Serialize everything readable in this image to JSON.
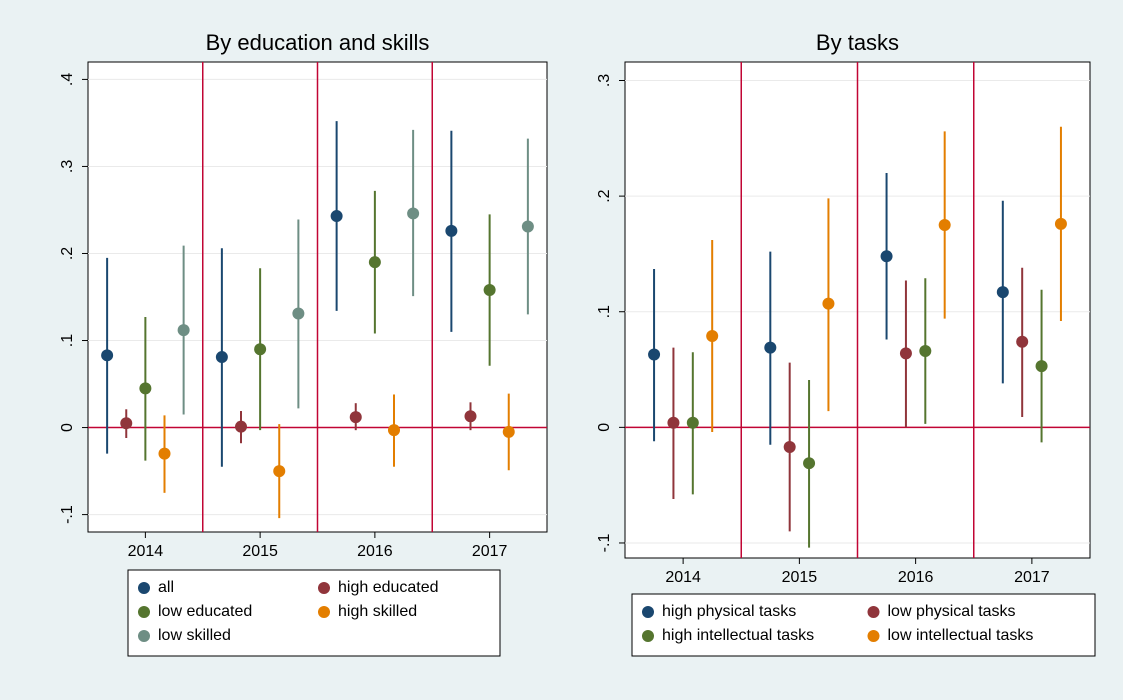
{
  "chart_data": [
    {
      "type": "errorbar",
      "title": "By education and skills",
      "categories": [
        "2014",
        "2015",
        "2016",
        "2017"
      ],
      "ylim": [
        -0.12,
        0.42
      ],
      "yticks": [
        {
          "value": -0.1,
          "label": "-.1"
        },
        0,
        {
          "value": 0.1,
          "label": ".1"
        },
        {
          "value": 0.2,
          "label": ".2"
        },
        {
          "value": 0.3,
          "label": ".3"
        },
        {
          "value": 0.4,
          "label": ".4"
        }
      ],
      "grid": true,
      "yline": 0,
      "legend_columns": 2,
      "series": [
        {
          "name": "all",
          "color": "#1a476f",
          "values": [
            0.083,
            0.081,
            0.243,
            0.226
          ],
          "lower": [
            -0.03,
            -0.045,
            0.134,
            0.11
          ],
          "upper": [
            0.195,
            0.206,
            0.352,
            0.341
          ]
        },
        {
          "name": "high educated",
          "color": "#90353b",
          "values": [
            0.005,
            0.001,
            0.012,
            0.013
          ],
          "lower": [
            -0.012,
            -0.018,
            -0.003,
            -0.003
          ],
          "upper": [
            0.021,
            0.019,
            0.028,
            0.029
          ]
        },
        {
          "name": "low educated",
          "color": "#55752f",
          "values": [
            0.045,
            0.09,
            0.19,
            0.158
          ],
          "lower": [
            -0.038,
            -0.003,
            0.108,
            0.071
          ],
          "upper": [
            0.127,
            0.183,
            0.272,
            0.245
          ]
        },
        {
          "name": "high skilled",
          "color": "#e37e00",
          "values": [
            -0.03,
            -0.05,
            -0.003,
            -0.005
          ],
          "lower": [
            -0.075,
            -0.104,
            -0.045,
            -0.049
          ],
          "upper": [
            0.014,
            0.004,
            0.038,
            0.039
          ]
        },
        {
          "name": "low skilled",
          "color": "#6e8e84",
          "values": [
            0.112,
            0.131,
            0.246,
            0.231
          ],
          "lower": [
            0.015,
            0.022,
            0.151,
            0.13
          ],
          "upper": [
            0.209,
            0.239,
            0.342,
            0.332
          ]
        }
      ]
    },
    {
      "type": "errorbar",
      "title": "By tasks",
      "categories": [
        "2014",
        "2015",
        "2016",
        "2017"
      ],
      "ylim": [
        -0.113,
        0.316
      ],
      "yticks": [
        {
          "value": -0.1,
          "label": "-.1"
        },
        0,
        {
          "value": 0.1,
          "label": ".1"
        },
        {
          "value": 0.2,
          "label": ".2"
        },
        {
          "value": 0.3,
          "label": ".3"
        }
      ],
      "grid": true,
      "yline": 0,
      "legend_columns": 2,
      "series": [
        {
          "name": "high physical tasks",
          "color": "#1a476f",
          "values": [
            0.063,
            0.069,
            0.148,
            0.117
          ],
          "lower": [
            -0.012,
            -0.015,
            0.076,
            0.038
          ],
          "upper": [
            0.137,
            0.152,
            0.22,
            0.196
          ]
        },
        {
          "name": "low physical tasks",
          "color": "#90353b",
          "values": [
            0.004,
            -0.017,
            0.064,
            0.074
          ],
          "lower": [
            -0.062,
            -0.09,
            0.0,
            0.009
          ],
          "upper": [
            0.069,
            0.056,
            0.127,
            0.138
          ]
        },
        {
          "name": "high intellectual tasks",
          "color": "#55752f",
          "values": [
            0.004,
            -0.031,
            0.066,
            0.053
          ],
          "lower": [
            -0.058,
            -0.104,
            0.003,
            -0.013
          ],
          "upper": [
            0.065,
            0.041,
            0.129,
            0.119
          ]
        },
        {
          "name": "low intellectual tasks",
          "color": "#e37e00",
          "values": [
            0.079,
            0.107,
            0.175,
            0.176
          ],
          "lower": [
            -0.004,
            0.014,
            0.094,
            0.092
          ],
          "upper": [
            0.162,
            0.198,
            0.256,
            0.26
          ]
        }
      ]
    }
  ]
}
